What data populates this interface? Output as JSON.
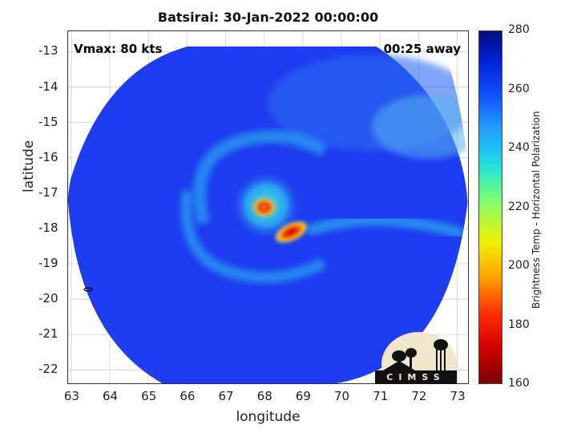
{
  "title": "Batsirai: 30-Jan-2022 00:00:00",
  "overlay": {
    "vmax": "Vmax: 80 kts",
    "time_away": "00:25 away"
  },
  "axes": {
    "xlabel": "longitude",
    "ylabel": "latitude",
    "xlim": [
      62.9,
      73.3
    ],
    "ylim": [
      -22.4,
      -12.4
    ],
    "xticks": [
      "63",
      "64",
      "65",
      "66",
      "67",
      "68",
      "69",
      "70",
      "71",
      "72",
      "73"
    ],
    "yticks": [
      "-13",
      "-14",
      "-15",
      "-16",
      "-17",
      "-18",
      "-19",
      "-20",
      "-21",
      "-22"
    ]
  },
  "colorbar": {
    "label": "Brightness Temp - Horizontal Polarization",
    "range": [
      160,
      280
    ],
    "ticks": [
      "280",
      "260",
      "240",
      "220",
      "200",
      "180",
      "160"
    ]
  },
  "storm": {
    "eye_lon": 68.0,
    "eye_lat": -17.4,
    "hot_spot_lon": 68.7,
    "hot_spot_lat": -18.1
  },
  "logo": {
    "text": "CIMSS"
  },
  "colors": {
    "background_cold": "#1e3cf0",
    "band_cyan": "#2aa8f0",
    "hot_red": "#cc0000",
    "hot_yellow": "#f0e020"
  }
}
